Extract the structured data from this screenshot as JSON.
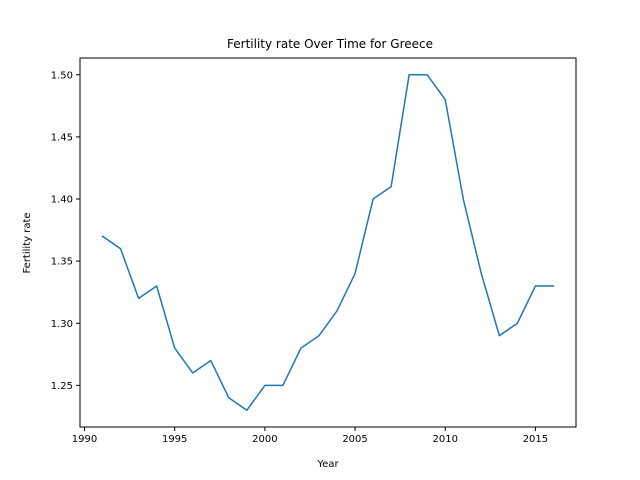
{
  "chart_data": {
    "type": "line",
    "title": "Fertility rate Over Time for Greece",
    "xlabel": "Year",
    "ylabel": "Fertility rate",
    "xlim": [
      1989.75,
      1991.0,
      2017.25
    ],
    "xlim_note": "",
    "x_range": [
      1989.75,
      2017.25
    ],
    "y_range": [
      1.2165,
      1.5135
    ],
    "x_ticks": [
      1990,
      1995,
      2000,
      2005,
      2010,
      2015
    ],
    "y_ticks": [
      1.25,
      1.3,
      1.35,
      1.4,
      1.45,
      1.5
    ],
    "grid": false,
    "line_color": "#1f77b4",
    "series": [
      {
        "x": [
          1991,
          1992,
          1993,
          1994,
          1995,
          1996,
          1997,
          1998,
          1999,
          2000,
          2001,
          2002,
          2003,
          2004,
          2005,
          2006,
          2007,
          2008,
          2009,
          2010,
          2011,
          2012,
          2013,
          2014,
          2015,
          2016
        ],
        "values": [
          1.37,
          1.36,
          1.32,
          1.33,
          1.28,
          1.26,
          1.27,
          1.24,
          1.23,
          1.25,
          1.25,
          1.28,
          1.29,
          1.31,
          1.34,
          1.4,
          1.41,
          1.5,
          1.5,
          1.48,
          1.4,
          1.34,
          1.29,
          1.3,
          1.33,
          1.33
        ]
      }
    ]
  }
}
